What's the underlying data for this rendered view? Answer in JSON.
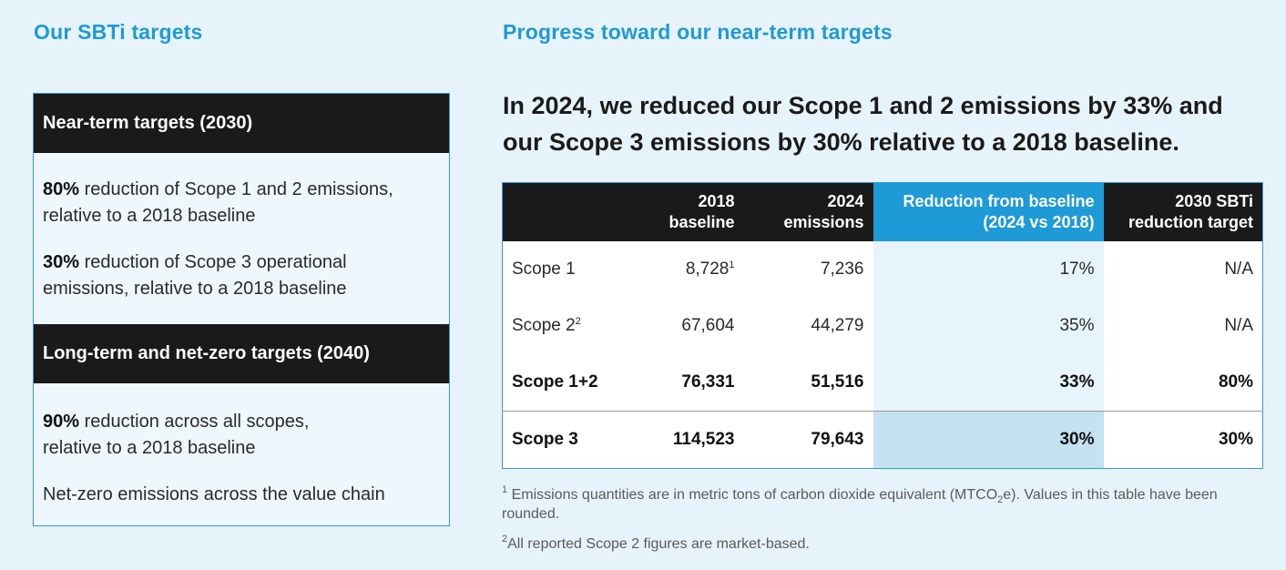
{
  "left": {
    "heading": "Our SBTi targets",
    "near_term": {
      "title": "Near-term targets (2030)",
      "items": [
        {
          "bold": "80%",
          "text": " reduction of Scope 1 and 2 emissions,\nrelative to a 2018 baseline"
        },
        {
          "bold": "30%",
          "text": " reduction of Scope 3 operational\nemissions, relative to a 2018 baseline"
        }
      ]
    },
    "long_term": {
      "title": "Long-term and net-zero targets (2040)",
      "items": [
        {
          "bold": "90%",
          "text": " reduction across all scopes,\nrelative to a 2018 baseline"
        },
        {
          "bold": "",
          "text": "Net-zero emissions across the value chain"
        }
      ]
    }
  },
  "right": {
    "heading": "Progress toward our near-term targets",
    "headline": "In 2024, we reduced our Scope 1 and 2 emissions by 33% and our Scope 3 emissions by 30% relative to a 2018 baseline.",
    "table": {
      "headers": [
        "",
        "2018\nbaseline",
        "2024\nemissions",
        "Reduction from baseline\n(2024 vs 2018)",
        "2030 SBTi\nreduction target"
      ],
      "rows": [
        {
          "label": "Scope 1",
          "label_sup": "",
          "baseline": "8,728",
          "baseline_sup": "1",
          "emissions": "7,236",
          "reduction": "17%",
          "target": "N/A"
        },
        {
          "label": "Scope 2",
          "label_sup": "2",
          "baseline": "67,604",
          "baseline_sup": "",
          "emissions": "44,279",
          "reduction": "35%",
          "target": "N/A"
        },
        {
          "label": "Scope 1+2",
          "label_sup": "",
          "baseline": "76,331",
          "baseline_sup": "",
          "emissions": "51,516",
          "reduction": "33%",
          "target": "80%"
        },
        {
          "label": "Scope 3",
          "label_sup": "",
          "baseline": "114,523",
          "baseline_sup": "",
          "emissions": "79,643",
          "reduction": "30%",
          "target": "30%"
        }
      ]
    },
    "footnotes": {
      "fn1_marker": "1",
      "fn1_text_a": " Emissions quantities are in metric tons of carbon dioxide equivalent (MTCO",
      "fn1_sub": "2",
      "fn1_text_b": "e). Values in this table have been rounded.",
      "fn2_marker": "2",
      "fn2_text": "All reported Scope 2 figures are market-based."
    }
  }
}
